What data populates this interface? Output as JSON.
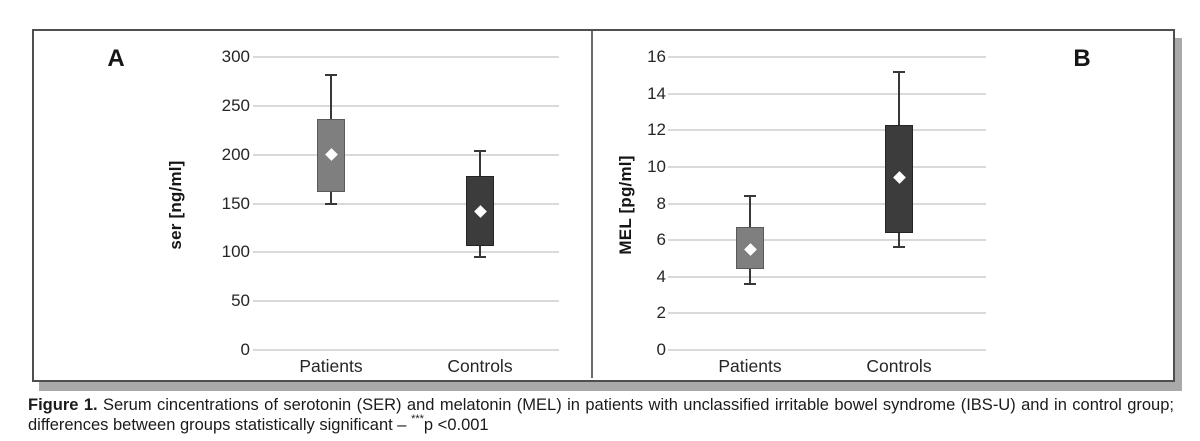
{
  "caption": {
    "label": "Figure 1.",
    "text": " Serum cincentrations of serotonin (SER) and melatonin (MEL) in patients with unclassified irritable bowel syndrome (IBS-U) and in control group; differences between groups statistically significant – ",
    "significance_marker": "***",
    "significance_text": "p <0.001"
  },
  "colors": {
    "patients_box_fill": "#7f7f7f",
    "patients_box_border": "#595959",
    "controls_box_fill": "#3c3c3c",
    "controls_box_border": "#242424",
    "whisker": "#383838",
    "gridline": "#d9d9d9",
    "mean_marker": "#ffffff",
    "frame_border": "#4f4f4f",
    "frame_shadow": "#a9a9a9",
    "divider": "#6a6a6a"
  },
  "chart_data": [
    {
      "type": "box",
      "panel": "A",
      "ylabel": "ser [ng/ml]",
      "ylim": [
        0,
        300
      ],
      "yticks": [
        0,
        50,
        100,
        150,
        200,
        250,
        300
      ],
      "grid": true,
      "marker": "mean-diamond",
      "categories": [
        "Patients",
        "Controls"
      ],
      "series": [
        {
          "name": "Patients",
          "whisker_low": 149,
          "q1": 162,
          "mean": 200,
          "q3": 237,
          "whisker_high": 282
        },
        {
          "name": "Controls",
          "whisker_low": 95,
          "q1": 106,
          "mean": 142,
          "q3": 178,
          "whisker_high": 204
        }
      ]
    },
    {
      "type": "box",
      "panel": "B",
      "ylabel": "MEL [pg/ml]",
      "ylim": [
        0,
        16
      ],
      "yticks": [
        0,
        2,
        4,
        6,
        8,
        10,
        12,
        14,
        16
      ],
      "grid": true,
      "marker": "mean-diamond",
      "categories": [
        "Patients",
        "Controls"
      ],
      "series": [
        {
          "name": "Patients",
          "whisker_low": 3.6,
          "q1": 4.4,
          "mean": 5.5,
          "q3": 6.7,
          "whisker_high": 8.4
        },
        {
          "name": "Controls",
          "whisker_low": 5.6,
          "q1": 6.4,
          "mean": 9.4,
          "q3": 12.3,
          "whisker_high": 15.2
        }
      ]
    }
  ]
}
